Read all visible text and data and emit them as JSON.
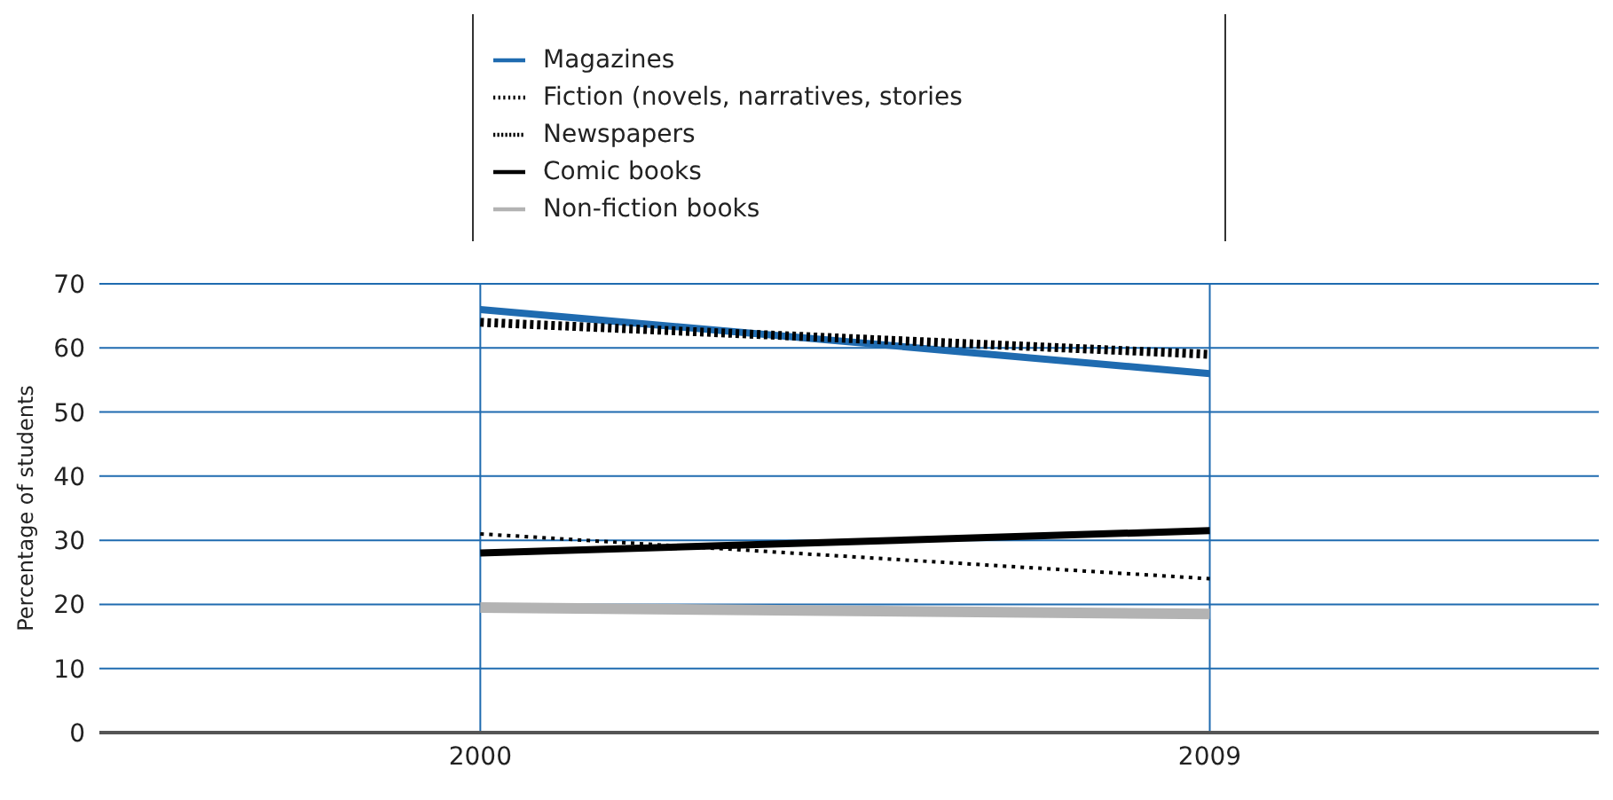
{
  "chart_data": {
    "type": "line",
    "ylabel": "Percentage of students",
    "x": [
      2000,
      2009
    ],
    "xlim": [
      1995.3,
      2013.8
    ],
    "xticks": [
      2000,
      2009
    ],
    "ylim": [
      0,
      70
    ],
    "yticks": [
      0,
      10,
      20,
      30,
      40,
      50,
      60,
      70
    ],
    "grid": true,
    "legend": "top",
    "marker": "none",
    "series": [
      {
        "name": "Magazines",
        "color": "#1f6bb0",
        "values": [
          66,
          56
        ],
        "line_style": "solid"
      },
      {
        "name": "Fiction (novels, narratives, stories",
        "color": "#000000",
        "values": [
          31,
          24
        ],
        "line_style": "dotted"
      },
      {
        "name": "Newspapers",
        "color": "#000000",
        "values": [
          64,
          59
        ],
        "line_style": "dashed"
      },
      {
        "name": "Comic books",
        "color": "#000000",
        "values": [
          28,
          31.5
        ],
        "line_style": "solid"
      },
      {
        "name": "Non-fiction books",
        "color": "#b3b3b3",
        "values": [
          19.5,
          18.5
        ],
        "line_style": "solid"
      }
    ]
  }
}
